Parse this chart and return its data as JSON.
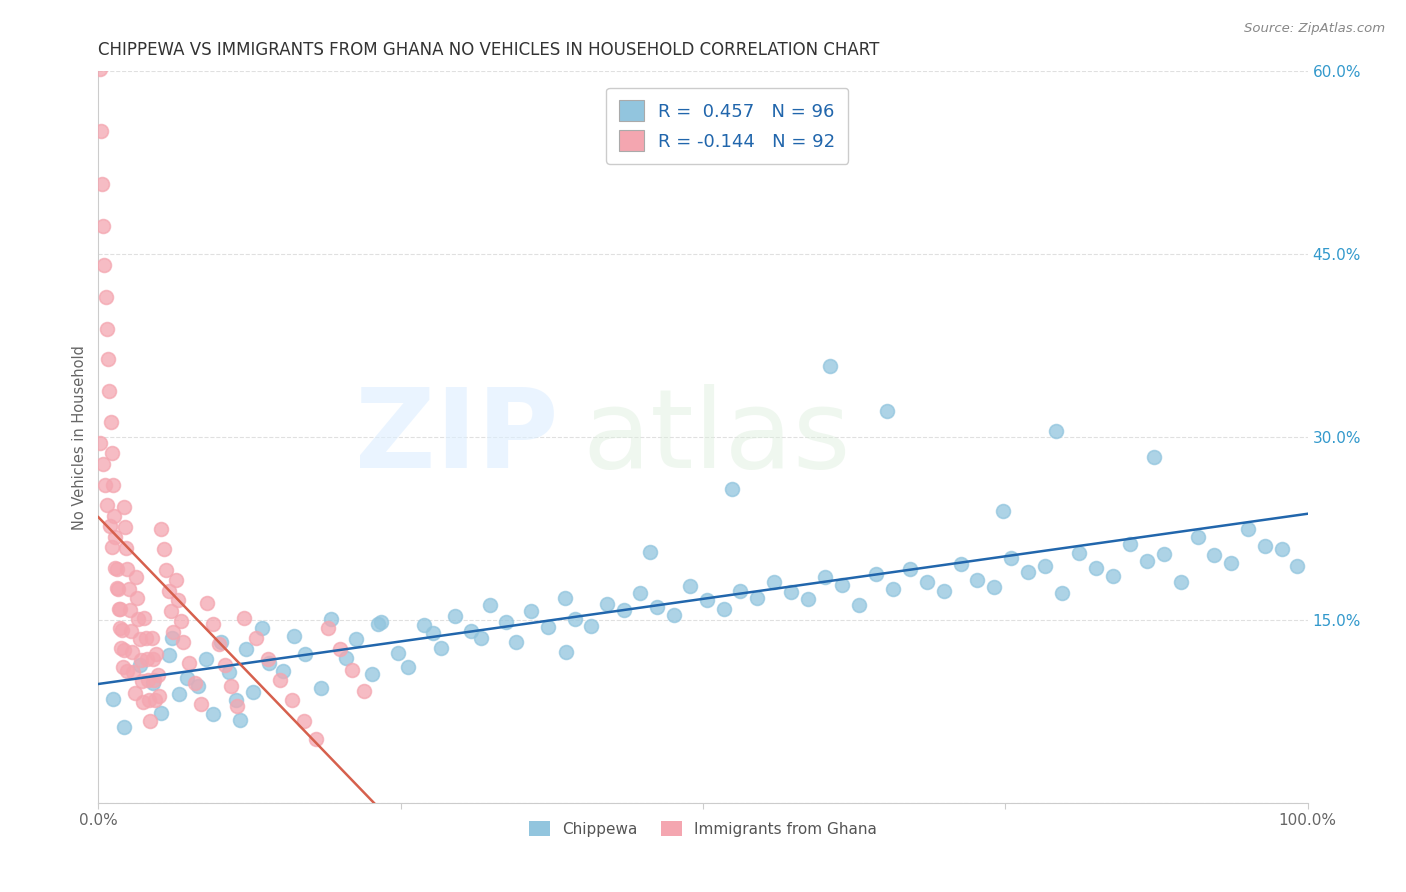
{
  "title": "CHIPPEWA VS IMMIGRANTS FROM GHANA NO VEHICLES IN HOUSEHOLD CORRELATION CHART",
  "source": "Source: ZipAtlas.com",
  "ylabel": "No Vehicles in Household",
  "xlim": [
    0,
    100
  ],
  "ylim": [
    0,
    60
  ],
  "blue_color": "#92c5de",
  "pink_color": "#f4a6b0",
  "blue_line_color": "#2166ac",
  "pink_line_color": "#d6604d",
  "legend_blue_label": "R =  0.457   N = 96",
  "legend_pink_label": "R = -0.144   N = 92",
  "tick_label_color": "#3399cc",
  "axis_label_color": "#666666",
  "blue_scatter_x": [
    1.2,
    2.1,
    3.4,
    4.5,
    5.2,
    5.8,
    6.1,
    6.7,
    7.3,
    8.2,
    8.9,
    9.5,
    10.1,
    10.8,
    11.4,
    12.2,
    12.8,
    13.5,
    14.1,
    15.3,
    16.2,
    17.1,
    18.4,
    19.2,
    20.5,
    21.3,
    22.6,
    23.4,
    24.8,
    25.6,
    26.9,
    27.7,
    28.3,
    29.5,
    30.8,
    31.6,
    32.4,
    33.7,
    34.5,
    35.8,
    37.2,
    38.6,
    39.4,
    40.7,
    42.1,
    43.5,
    44.8,
    46.2,
    47.6,
    48.9,
    50.3,
    51.7,
    53.1,
    54.5,
    55.9,
    57.3,
    58.7,
    60.1,
    61.5,
    62.9,
    64.3,
    65.7,
    67.1,
    68.5,
    69.9,
    71.3,
    72.7,
    74.1,
    75.5,
    76.9,
    78.3,
    79.7,
    81.1,
    82.5,
    83.9,
    85.3,
    86.7,
    88.1,
    89.5,
    90.9,
    92.3,
    93.7,
    95.1,
    96.5,
    97.9,
    99.1,
    60.5,
    65.2,
    38.7,
    52.4,
    74.8,
    87.3,
    45.6,
    23.1,
    11.7,
    79.2
  ],
  "blue_scatter_y": [
    8.5,
    6.2,
    11.3,
    9.8,
    7.4,
    12.1,
    13.5,
    8.9,
    10.2,
    9.6,
    11.8,
    7.3,
    13.2,
    10.7,
    8.4,
    12.6,
    9.1,
    14.3,
    11.5,
    10.8,
    13.7,
    12.2,
    9.4,
    15.1,
    11.9,
    13.4,
    10.6,
    14.8,
    12.3,
    11.1,
    14.6,
    13.9,
    12.7,
    15.3,
    14.1,
    13.5,
    16.2,
    14.8,
    13.2,
    15.7,
    14.4,
    16.8,
    15.1,
    14.5,
    16.3,
    15.8,
    17.2,
    16.1,
    15.4,
    17.8,
    16.6,
    15.9,
    17.4,
    16.8,
    18.1,
    17.3,
    16.7,
    18.5,
    17.9,
    16.2,
    18.8,
    17.5,
    19.2,
    18.1,
    17.4,
    19.6,
    18.3,
    17.7,
    20.1,
    18.9,
    19.4,
    17.2,
    20.5,
    19.3,
    18.6,
    21.2,
    19.8,
    20.4,
    18.1,
    21.8,
    20.3,
    19.7,
    22.5,
    21.1,
    20.8,
    19.4,
    35.8,
    32.1,
    12.4,
    25.7,
    23.9,
    28.4,
    20.6,
    14.7,
    6.8,
    30.5
  ],
  "pink_scatter_x": [
    0.1,
    0.2,
    0.3,
    0.4,
    0.5,
    0.6,
    0.7,
    0.8,
    0.9,
    1.0,
    1.1,
    1.2,
    1.3,
    1.4,
    1.5,
    1.6,
    1.7,
    1.8,
    1.9,
    2.0,
    2.1,
    2.2,
    2.3,
    2.4,
    2.5,
    2.6,
    2.7,
    2.8,
    2.9,
    3.0,
    3.1,
    3.2,
    3.3,
    3.4,
    3.5,
    3.6,
    3.7,
    3.8,
    3.9,
    4.0,
    4.1,
    4.2,
    4.3,
    4.4,
    4.5,
    4.6,
    4.7,
    4.8,
    4.9,
    5.0,
    5.2,
    5.4,
    5.6,
    5.8,
    6.0,
    6.2,
    6.4,
    6.6,
    6.8,
    7.0,
    7.5,
    8.0,
    8.5,
    9.0,
    9.5,
    10.0,
    10.5,
    11.0,
    11.5,
    12.0,
    13.0,
    14.0,
    15.0,
    16.0,
    17.0,
    18.0,
    19.0,
    20.0,
    21.0,
    22.0,
    0.15,
    0.35,
    0.55,
    0.75,
    0.95,
    1.15,
    1.35,
    1.55,
    1.75,
    1.95,
    2.15,
    2.35
  ],
  "pink_scatter_y": [
    60.2,
    55.1,
    50.8,
    47.3,
    44.1,
    41.5,
    38.9,
    36.4,
    33.8,
    31.2,
    28.7,
    26.1,
    23.5,
    21.8,
    19.2,
    17.5,
    15.9,
    14.3,
    12.7,
    11.1,
    24.3,
    22.6,
    20.9,
    19.2,
    17.5,
    15.8,
    14.1,
    12.4,
    10.7,
    9.0,
    18.5,
    16.8,
    15.1,
    13.4,
    11.7,
    10.0,
    8.3,
    15.2,
    13.5,
    11.8,
    10.1,
    8.4,
    6.7,
    13.5,
    11.8,
    10.1,
    8.4,
    12.2,
    10.5,
    8.8,
    22.5,
    20.8,
    19.1,
    17.4,
    15.7,
    14.0,
    18.3,
    16.6,
    14.9,
    13.2,
    11.5,
    9.8,
    8.1,
    16.4,
    14.7,
    13.0,
    11.3,
    9.6,
    7.9,
    15.2,
    13.5,
    11.8,
    10.1,
    8.4,
    6.7,
    5.2,
    14.3,
    12.6,
    10.9,
    9.2,
    29.5,
    27.8,
    26.1,
    24.4,
    22.7,
    21.0,
    19.3,
    17.6,
    15.9,
    14.2,
    12.5,
    10.8
  ]
}
